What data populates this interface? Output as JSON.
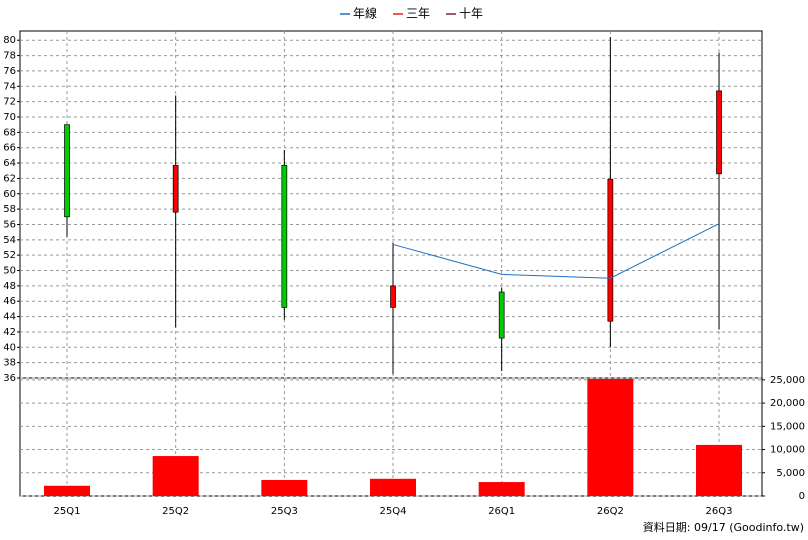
{
  "chart_data": [
    {
      "type": "candlestick",
      "open": [
        69,
        57.6,
        63.7,
        45.2,
        47.2,
        43.4,
        62.6
      ],
      "high": [
        69,
        72.8,
        65.7,
        53.6,
        47.8,
        80.4,
        78.4
      ],
      "low": [
        54.4,
        42.6,
        43.6,
        36.5,
        36.9,
        40,
        42.3
      ],
      "close": [
        57,
        63.7,
        45.2,
        48,
        41.2,
        61.9,
        73.4
      ],
      "up_color": "#ff0000",
      "down_color": "#00cc00",
      "series": [
        {
          "name": "年線",
          "color": "#1f6fc5",
          "values": [
            null,
            null,
            null,
            53.4,
            49.5,
            49.0,
            56.1
          ]
        },
        {
          "name": "三年",
          "color": "#e02020",
          "values": [
            null,
            null,
            null,
            null,
            null,
            null,
            null
          ]
        },
        {
          "name": "十年",
          "color": "#8b1a4a",
          "values": [
            null,
            null,
            null,
            null,
            null,
            null,
            null
          ]
        }
      ],
      "ylim": [
        36,
        81.2
      ],
      "yticks": [
        36,
        38,
        40,
        42,
        44,
        46,
        48,
        50,
        52,
        54,
        56,
        58,
        60,
        62,
        64,
        66,
        68,
        70,
        72,
        74,
        76,
        78,
        80
      ],
      "grid": true
    },
    {
      "type": "bar",
      "categories": [
        "25Q1",
        "25Q2",
        "25Q3",
        "25Q4",
        "26Q1",
        "26Q2",
        "26Q3"
      ],
      "values": [
        2200,
        8600,
        3450,
        3700,
        3000,
        25200,
        11000
      ],
      "color": "#ff0000",
      "ylim": [
        0,
        25400
      ],
      "yticks": [
        0,
        {
          "value": 5000,
          "label": "5,000"
        },
        {
          "value": 10000,
          "label": "10,000"
        },
        {
          "value": 15000,
          "label": "15,000"
        },
        {
          "value": 20000,
          "label": "20,000"
        },
        {
          "value": 25000,
          "label": "25,000"
        }
      ],
      "grid": true
    }
  ],
  "footer": "資料日期: 09/17  (Goodinfo.tw)"
}
